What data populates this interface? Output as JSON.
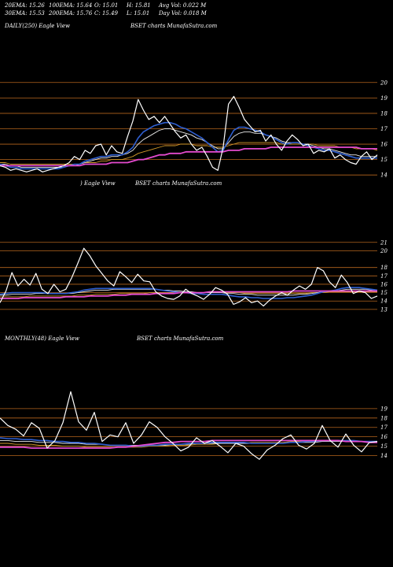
{
  "header": {
    "row1": [
      "20EMA: 15.26",
      "100EMA: 15.64",
      "O: 15.01",
      "H: 15.81",
      "Avg Vol: 0.022  M"
    ],
    "row2": [
      "30EMA: 15.53",
      "200EMA: 15.76",
      "C: 15.49",
      "L: 15.01",
      "Day Vol: 0.018  M"
    ]
  },
  "panels": [
    {
      "left": "DAILY(250) Eagle  View",
      "right": "BSET charts MunafaSutra.com"
    },
    {
      "left": ") Eagle  View",
      "right": "BSET charts MunafaSutra.com"
    },
    {
      "left": "MONTHLY(48) Eagle  View",
      "right": "BSET charts MunafaSutra.com"
    }
  ],
  "colors": {
    "background": "#000000",
    "grid": "#b5651d",
    "price": "#ffffff",
    "ema_fast": "#2f5fd0",
    "ema_mid": "#e8e8e8",
    "ema_slow": "#d39a2a",
    "ema_long": "#e64bd0"
  },
  "chart_data": [
    {
      "type": "line",
      "title": "DAILY(250)",
      "ylim": [
        13.6,
        20.5
      ],
      "yticks": [
        20,
        19,
        18,
        17,
        16,
        15,
        14
      ],
      "series": [
        {
          "role": "price",
          "values": [
            14.6,
            14.5,
            14.3,
            14.4,
            14.3,
            14.2,
            14.3,
            14.4,
            14.2,
            14.3,
            14.4,
            14.5,
            14.6,
            14.8,
            15.2,
            15.0,
            15.6,
            15.4,
            15.9,
            16.0,
            15.3,
            15.9,
            15.5,
            15.4,
            16.5,
            17.5,
            18.9,
            18.2,
            17.6,
            17.8,
            17.4,
            17.8,
            17.3,
            16.8,
            16.4,
            16.6,
            16.0,
            15.6,
            15.8,
            15.2,
            14.5,
            14.3,
            15.8,
            18.6,
            19.1,
            18.4,
            17.6,
            17.2,
            16.8,
            16.9,
            16.2,
            16.6,
            16.0,
            15.6,
            16.2,
            16.6,
            16.3,
            15.9,
            16.0,
            15.4,
            15.6,
            15.5,
            15.7,
            15.1,
            15.3,
            15.0,
            14.8,
            14.7,
            15.2,
            15.5,
            15.0,
            15.3
          ],
          "color": "#ffffff"
        },
        {
          "role": "ema20",
          "values": [
            14.7,
            14.6,
            14.5,
            14.5,
            14.4,
            14.4,
            14.4,
            14.4,
            14.4,
            14.4,
            14.4,
            14.4,
            14.5,
            14.6,
            14.7,
            14.7,
            14.9,
            15.0,
            15.1,
            15.2,
            15.2,
            15.3,
            15.3,
            15.3,
            15.5,
            15.8,
            16.4,
            16.8,
            17.0,
            17.2,
            17.3,
            17.4,
            17.4,
            17.3,
            17.1,
            17.0,
            16.8,
            16.6,
            16.4,
            16.1,
            15.8,
            15.5,
            15.6,
            16.3,
            16.9,
            17.1,
            17.1,
            17.0,
            16.9,
            16.8,
            16.6,
            16.5,
            16.3,
            16.1,
            16.0,
            16.1,
            16.1,
            16.0,
            15.9,
            15.8,
            15.7,
            15.6,
            15.6,
            15.5,
            15.4,
            15.3,
            15.2,
            15.1,
            15.1,
            15.1,
            15.1,
            15.1
          ],
          "color": "#2f5fd0"
        },
        {
          "role": "ema30",
          "values": [
            14.7,
            14.7,
            14.6,
            14.6,
            14.5,
            14.5,
            14.5,
            14.5,
            14.5,
            14.5,
            14.5,
            14.5,
            14.5,
            14.6,
            14.6,
            14.7,
            14.8,
            14.9,
            15.0,
            15.1,
            15.1,
            15.2,
            15.2,
            15.3,
            15.4,
            15.6,
            16.0,
            16.3,
            16.5,
            16.7,
            16.9,
            17.0,
            17.0,
            16.9,
            16.8,
            16.7,
            16.6,
            16.4,
            16.3,
            16.1,
            15.9,
            15.7,
            15.7,
            16.1,
            16.5,
            16.7,
            16.8,
            16.8,
            16.7,
            16.7,
            16.6,
            16.5,
            16.4,
            16.2,
            16.1,
            16.1,
            16.1,
            16.0,
            16.0,
            15.9,
            15.8,
            15.7,
            15.7,
            15.6,
            15.5,
            15.4,
            15.3,
            15.3,
            15.2,
            15.2,
            15.2,
            15.2
          ],
          "color": "#e8e8e8"
        },
        {
          "role": "ema100",
          "values": [
            14.8,
            14.8,
            14.7,
            14.7,
            14.7,
            14.7,
            14.7,
            14.7,
            14.7,
            14.7,
            14.7,
            14.7,
            14.7,
            14.7,
            14.7,
            14.7,
            14.8,
            14.8,
            14.8,
            14.9,
            14.9,
            15.0,
            15.0,
            15.0,
            15.1,
            15.2,
            15.4,
            15.5,
            15.6,
            15.7,
            15.8,
            15.9,
            15.9,
            15.9,
            16.0,
            16.0,
            16.0,
            15.9,
            15.9,
            15.9,
            15.8,
            15.8,
            15.8,
            15.9,
            16.0,
            16.1,
            16.1,
            16.1,
            16.1,
            16.1,
            16.1,
            16.1,
            16.1,
            16.0,
            16.0,
            16.0,
            16.0,
            16.0,
            16.0,
            16.0,
            15.9,
            15.9,
            15.9,
            15.9,
            15.8,
            15.8,
            15.8,
            15.7,
            15.7,
            15.7,
            15.7,
            15.6
          ],
          "color": "#d39a2a"
        },
        {
          "role": "ema200",
          "values": [
            14.6,
            14.6,
            14.6,
            14.6,
            14.6,
            14.6,
            14.6,
            14.6,
            14.6,
            14.6,
            14.6,
            14.6,
            14.6,
            14.6,
            14.6,
            14.6,
            14.7,
            14.7,
            14.7,
            14.7,
            14.7,
            14.8,
            14.8,
            14.8,
            14.8,
            14.9,
            15.0,
            15.0,
            15.1,
            15.2,
            15.3,
            15.3,
            15.4,
            15.4,
            15.4,
            15.5,
            15.5,
            15.5,
            15.5,
            15.5,
            15.5,
            15.5,
            15.5,
            15.6,
            15.6,
            15.6,
            15.7,
            15.7,
            15.7,
            15.7,
            15.7,
            15.8,
            15.8,
            15.8,
            15.8,
            15.8,
            15.8,
            15.8,
            15.8,
            15.8,
            15.8,
            15.8,
            15.8,
            15.8,
            15.8,
            15.8,
            15.8,
            15.8,
            15.7,
            15.7,
            15.7,
            15.7
          ],
          "color": "#e64bd0"
        }
      ]
    },
    {
      "type": "line",
      "title": "",
      "ylim": [
        12.8,
        22.2
      ],
      "yticks": [
        21,
        20,
        18,
        17,
        16,
        15,
        14,
        13
      ],
      "series": [
        {
          "role": "price",
          "values": [
            13.8,
            15.2,
            17.4,
            15.8,
            16.6,
            15.9,
            17.3,
            15.4,
            14.9,
            16.0,
            15.1,
            15.4,
            16.8,
            18.5,
            20.3,
            19.4,
            18.2,
            17.3,
            16.4,
            15.8,
            17.5,
            16.9,
            16.2,
            17.2,
            16.4,
            16.3,
            15.1,
            14.6,
            14.3,
            14.2,
            14.6,
            15.4,
            14.9,
            14.6,
            14.2,
            14.8,
            15.6,
            15.3,
            14.8,
            13.6,
            13.9,
            14.4,
            13.8,
            14.0,
            13.4,
            14.1,
            14.6,
            15.0,
            14.7,
            15.3,
            15.8,
            15.4,
            16.0,
            18.0,
            17.6,
            16.3,
            15.6,
            17.1,
            16.2,
            14.9,
            15.2,
            15.0,
            14.3,
            14.6
          ],
          "color": "#ffffff"
        },
        {
          "role": "ema20",
          "values": [
            14.8,
            14.9,
            15.0,
            15.0,
            15.0,
            15.0,
            15.0,
            15.0,
            14.9,
            14.9,
            14.9,
            14.9,
            15.0,
            15.1,
            15.3,
            15.4,
            15.5,
            15.5,
            15.5,
            15.5,
            15.5,
            15.5,
            15.5,
            15.5,
            15.5,
            15.5,
            15.4,
            15.3,
            15.2,
            15.1,
            15.0,
            15.0,
            14.9,
            14.9,
            14.8,
            14.8,
            14.8,
            14.8,
            14.7,
            14.6,
            14.5,
            14.5,
            14.4,
            14.4,
            14.3,
            14.3,
            14.3,
            14.3,
            14.4,
            14.4,
            14.5,
            14.6,
            14.7,
            14.9,
            15.1,
            15.2,
            15.3,
            15.5,
            15.6,
            15.6,
            15.6,
            15.5,
            15.4,
            15.3
          ],
          "color": "#2f5fd0"
        },
        {
          "role": "ema30",
          "values": [
            14.7,
            14.7,
            14.8,
            14.8,
            14.8,
            14.8,
            14.9,
            14.9,
            14.9,
            14.9,
            14.9,
            14.9,
            14.9,
            15.0,
            15.1,
            15.2,
            15.3,
            15.3,
            15.3,
            15.4,
            15.4,
            15.4,
            15.4,
            15.4,
            15.4,
            15.4,
            15.4,
            15.3,
            15.3,
            15.2,
            15.2,
            15.1,
            15.1,
            15.0,
            15.0,
            15.0,
            15.0,
            15.0,
            14.9,
            14.9,
            14.8,
            14.8,
            14.8,
            14.7,
            14.7,
            14.7,
            14.7,
            14.7,
            14.7,
            14.7,
            14.8,
            14.8,
            14.9,
            15.0,
            15.1,
            15.2,
            15.2,
            15.3,
            15.4,
            15.4,
            15.4,
            15.4,
            15.3,
            15.3
          ],
          "color": "#e8e8e8"
        },
        {
          "role": "ema100",
          "values": [
            14.5,
            14.5,
            14.5,
            14.5,
            14.5,
            14.6,
            14.6,
            14.6,
            14.6,
            14.6,
            14.6,
            14.6,
            14.6,
            14.7,
            14.7,
            14.7,
            14.8,
            14.8,
            14.8,
            14.8,
            14.9,
            14.9,
            14.9,
            14.9,
            14.9,
            15.0,
            15.0,
            15.0,
            15.0,
            15.0,
            15.0,
            15.0,
            15.0,
            15.0,
            15.0,
            15.0,
            15.0,
            15.0,
            15.0,
            15.0,
            15.0,
            14.9,
            14.9,
            14.9,
            14.9,
            14.9,
            14.9,
            14.9,
            14.9,
            14.9,
            14.9,
            14.9,
            15.0,
            15.0,
            15.0,
            15.1,
            15.1,
            15.1,
            15.1,
            15.1,
            15.1,
            15.1,
            15.1,
            15.1
          ],
          "color": "#d39a2a"
        },
        {
          "role": "ema200",
          "values": [
            14.3,
            14.3,
            14.3,
            14.3,
            14.4,
            14.4,
            14.4,
            14.4,
            14.4,
            14.4,
            14.4,
            14.5,
            14.5,
            14.5,
            14.5,
            14.6,
            14.6,
            14.6,
            14.6,
            14.7,
            14.7,
            14.7,
            14.8,
            14.8,
            14.8,
            14.8,
            14.9,
            14.9,
            14.9,
            14.9,
            15.0,
            15.0,
            15.0,
            15.0,
            15.0,
            15.1,
            15.1,
            15.1,
            15.1,
            15.1,
            15.1,
            15.1,
            15.1,
            15.1,
            15.1,
            15.1,
            15.1,
            15.1,
            15.1,
            15.2,
            15.2,
            15.2,
            15.2,
            15.2,
            15.2,
            15.2,
            15.2,
            15.2,
            15.2,
            15.2,
            15.2,
            15.2,
            15.2,
            15.2
          ],
          "color": "#e64bd0"
        }
      ]
    },
    {
      "type": "line",
      "title": "MONTHLY(48)",
      "ylim": [
        12.2,
        21.0
      ],
      "yticks": [
        19,
        18,
        17,
        16,
        15,
        14
      ],
      "series": [
        {
          "role": "price",
          "values": [
            18.0,
            17.2,
            16.8,
            16.1,
            17.5,
            16.9,
            14.8,
            15.6,
            17.5,
            20.8,
            17.6,
            16.7,
            18.6,
            15.5,
            16.2,
            16.0,
            17.5,
            15.3,
            16.2,
            17.6,
            17.0,
            16.0,
            15.3,
            14.5,
            14.9,
            15.9,
            15.3,
            15.6,
            15.0,
            14.3,
            15.3,
            15.0,
            14.2,
            13.6,
            14.6,
            15.1,
            15.8,
            16.2,
            15.1,
            14.7,
            15.3,
            17.2,
            15.6,
            14.9,
            16.3,
            15.1,
            14.4,
            15.4,
            15.5
          ],
          "color": "#ffffff"
        },
        {
          "role": "ema20",
          "values": [
            15.9,
            15.8,
            15.8,
            15.7,
            15.7,
            15.6,
            15.6,
            15.5,
            15.5,
            15.4,
            15.4,
            15.3,
            15.3,
            15.2,
            15.1,
            15.1,
            15.1,
            15.0,
            15.0,
            15.1,
            15.1,
            15.2,
            15.2,
            15.2,
            15.3,
            15.3,
            15.3,
            15.4,
            15.4,
            15.4,
            15.4,
            15.4,
            15.3,
            15.3,
            15.3,
            15.3,
            15.3,
            15.4,
            15.4,
            15.5,
            15.5,
            15.6,
            15.6,
            15.6,
            15.6,
            15.6,
            15.5,
            15.5,
            15.5
          ],
          "color": "#2f5fd0"
        },
        {
          "role": "ema30",
          "values": [
            15.6,
            15.6,
            15.5,
            15.5,
            15.5,
            15.4,
            15.4,
            15.4,
            15.3,
            15.3,
            15.3,
            15.2,
            15.2,
            15.2,
            15.1,
            15.1,
            15.1,
            15.1,
            15.1,
            15.1,
            15.1,
            15.1,
            15.2,
            15.2,
            15.2,
            15.3,
            15.3,
            15.3,
            15.3,
            15.3,
            15.3,
            15.3,
            15.3,
            15.3,
            15.3,
            15.3,
            15.3,
            15.4,
            15.4,
            15.4,
            15.4,
            15.5,
            15.5,
            15.5,
            15.5,
            15.5,
            15.5,
            15.5,
            15.5
          ],
          "color": "#e8e8e8"
        },
        {
          "role": "ema100",
          "values": [
            15.3,
            15.3,
            15.2,
            15.2,
            15.2,
            15.1,
            15.1,
            15.1,
            15.0,
            15.0,
            15.0,
            14.9,
            14.9,
            14.9,
            14.9,
            14.9,
            14.9,
            14.9,
            14.9,
            15.0,
            15.0,
            15.0,
            15.1,
            15.1,
            15.1,
            15.2,
            15.2,
            15.2,
            15.3,
            15.3,
            15.3,
            15.3,
            15.4,
            15.4,
            15.4,
            15.4,
            15.4,
            15.5,
            15.5,
            15.5,
            15.5,
            15.5,
            15.5,
            15.5,
            15.5,
            15.5,
            15.5,
            15.5,
            15.5
          ],
          "color": "#d39a2a"
        },
        {
          "role": "ema200",
          "values": [
            14.9,
            14.9,
            14.9,
            14.9,
            14.8,
            14.8,
            14.8,
            14.8,
            14.8,
            14.8,
            14.8,
            14.8,
            14.8,
            14.8,
            14.8,
            14.9,
            14.9,
            15.0,
            15.1,
            15.2,
            15.3,
            15.4,
            15.4,
            15.5,
            15.5,
            15.5,
            15.5,
            15.6,
            15.6,
            15.6,
            15.6,
            15.6,
            15.6,
            15.6,
            15.6,
            15.6,
            15.6,
            15.6,
            15.6,
            15.6,
            15.6,
            15.6,
            15.6,
            15.6,
            15.5,
            15.5,
            15.5,
            15.4,
            15.4
          ],
          "color": "#e64bd0"
        }
      ]
    }
  ]
}
